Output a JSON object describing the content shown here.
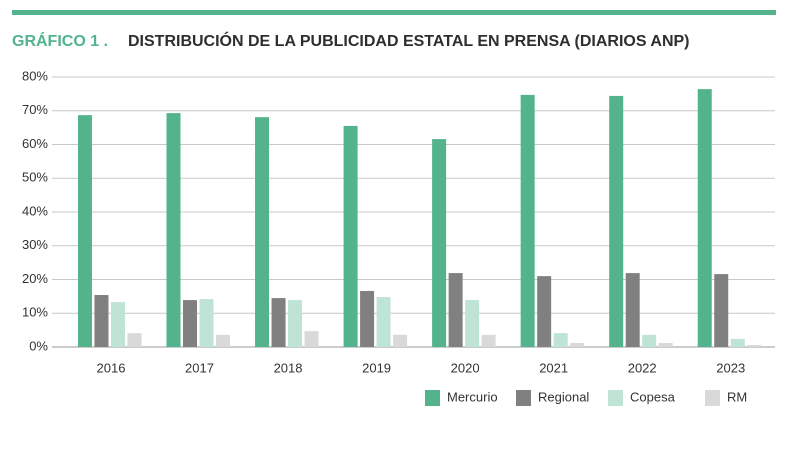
{
  "chart_data": {
    "type": "bar",
    "label": "GRÁFICO 1 .",
    "title": "DISTRIBUCIÓN DE LA PUBLICIDAD ESTATAL EN PRENSA (DIARIOS ANP)",
    "categories": [
      "2016",
      "2017",
      "2018",
      "2019",
      "2020",
      "2021",
      "2022",
      "2023"
    ],
    "series": [
      {
        "name": "Mercurio",
        "color": "#52b38d",
        "values": [
          68.7,
          69.3,
          68.1,
          65.5,
          61.6,
          74.7,
          74.4,
          76.4
        ]
      },
      {
        "name": "Regional",
        "color": "#808080",
        "values": [
          15.4,
          13.9,
          14.5,
          16.6,
          21.9,
          21.0,
          21.9,
          21.6
        ]
      },
      {
        "name": "Copesa",
        "color": "#bfe3d4",
        "values": [
          13.3,
          14.2,
          13.9,
          14.8,
          13.9,
          4.1,
          3.6,
          2.4
        ]
      },
      {
        "name": "RM",
        "color": "#d9d9d9",
        "values": [
          4.1,
          3.6,
          4.7,
          3.6,
          3.6,
          1.2,
          1.2,
          0.6
        ]
      }
    ],
    "ylim": [
      0,
      80
    ],
    "yticks": [
      {
        "value": 0,
        "label": "0%"
      },
      {
        "value": 10,
        "label": "10%"
      },
      {
        "value": 20,
        "label": "20%"
      },
      {
        "value": 30,
        "label": "30%"
      },
      {
        "value": 40,
        "label": "40%"
      },
      {
        "value": 50,
        "label": "50%"
      },
      {
        "value": 60,
        "label": "60%"
      },
      {
        "value": 70,
        "label": "70%"
      },
      {
        "value": 80,
        "label": "80%"
      }
    ],
    "grid": true,
    "legend": "bottom-right"
  }
}
